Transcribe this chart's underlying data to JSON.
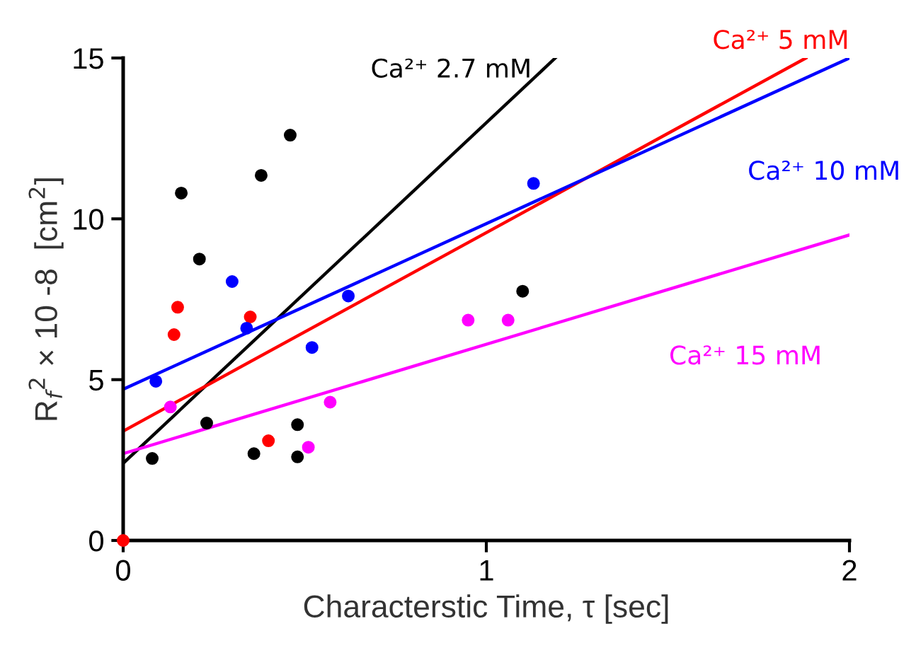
{
  "chart_data": {
    "type": "scatter",
    "xlabel": "Characterstic Time, τ [sec]",
    "ylabel": "R$_{f}$$^{2}$ × 10 -8  [cm$^{2}$]",
    "xlim": [
      0,
      2
    ],
    "ylim": [
      0,
      15
    ],
    "xticks": [
      0,
      1,
      2
    ],
    "yticks": [
      0,
      5,
      10,
      15
    ],
    "grid": false,
    "legend": false,
    "series": [
      {
        "marker": "circle",
        "color": "#000000",
        "x": [
          0.08,
          0.16,
          0.21,
          0.23,
          0.38,
          0.46,
          0.36,
          0.48,
          0.48,
          1.1
        ],
        "values": [
          2.55,
          10.8,
          8.75,
          3.65,
          11.35,
          12.6,
          2.7,
          3.6,
          2.6,
          7.75
        ]
      },
      {
        "marker": "circle",
        "color": "#ff0000",
        "x": [
          0,
          0.15,
          0.14,
          0.35,
          0.4
        ],
        "values": [
          0,
          7.25,
          6.4,
          6.95,
          3.1
        ]
      },
      {
        "marker": "circle",
        "color": "#0000ff",
        "x": [
          0.09,
          0.3,
          0.34,
          0.52,
          0.62,
          1.13
        ],
        "values": [
          4.95,
          8.05,
          6.6,
          6.0,
          7.6,
          11.1
        ]
      },
      {
        "marker": "circle",
        "color": "#ff00ff",
        "x": [
          0.13,
          0.57,
          0.51,
          0.95,
          1.06
        ],
        "values": [
          4.15,
          4.3,
          2.9,
          6.85,
          6.85
        ]
      },
      {
        "type": "line",
        "marker": "none",
        "name": "Ca²⁺ 2.7 mM",
        "color": "#000000",
        "x": [
          0,
          1.19
        ],
        "values": [
          2.4,
          15
        ]
      },
      {
        "type": "line",
        "marker": "none",
        "name": "Ca²⁺ 5 mM",
        "color": "#ff0000",
        "x": [
          0,
          1.88
        ],
        "values": [
          3.4,
          15
        ]
      },
      {
        "type": "line",
        "marker": "none",
        "name": "Ca²⁺ 10 mM",
        "color": "#0000ff",
        "x": [
          0,
          2
        ],
        "values": [
          4.7,
          15
        ]
      },
      {
        "type": "line",
        "marker": "none",
        "name": "Ca²⁺ 15 mM",
        "color": "#ff00ff",
        "x": [
          0,
          2
        ],
        "values": [
          2.7,
          9.5
        ]
      }
    ]
  }
}
